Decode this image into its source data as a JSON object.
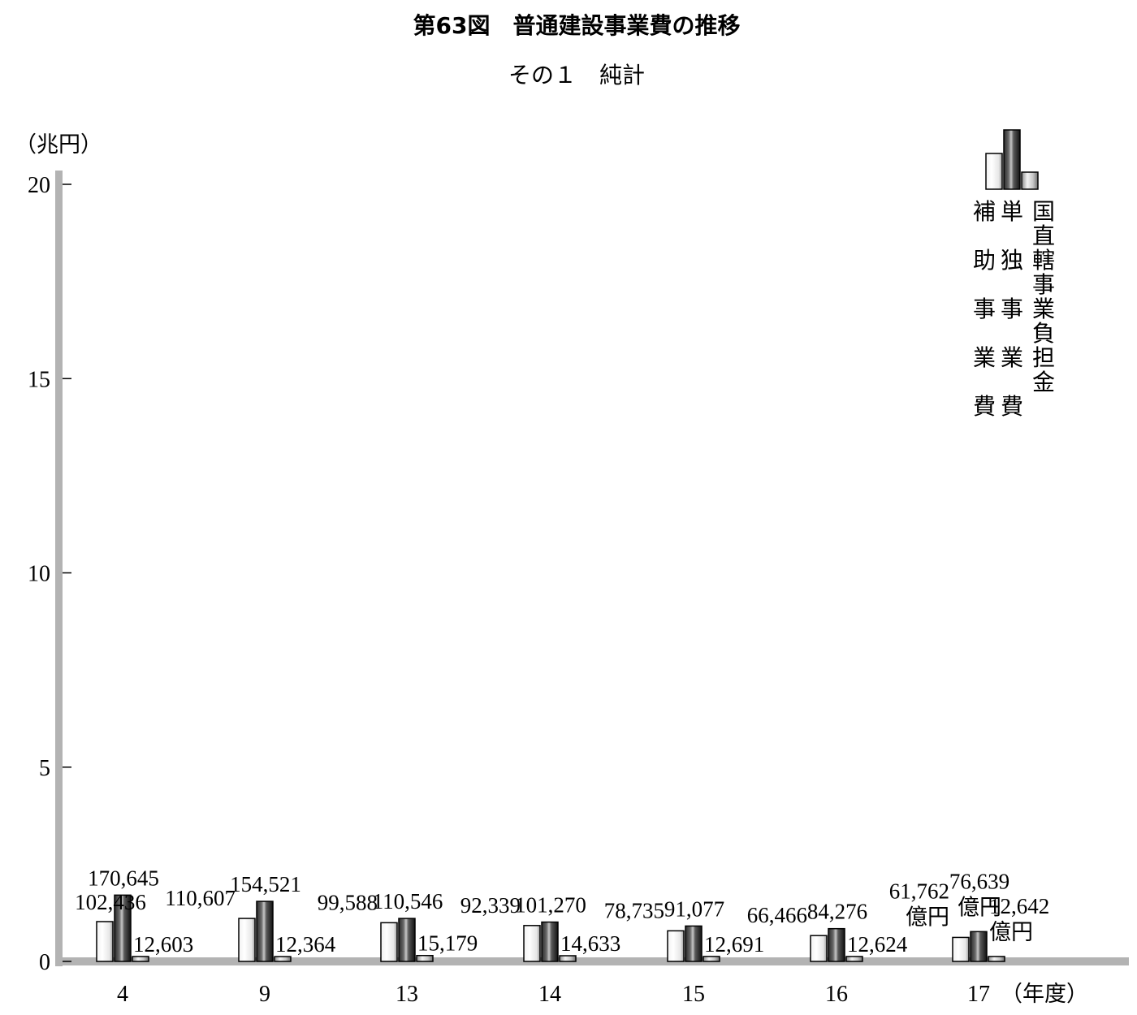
{
  "title": "第63図　普通建設事業費の推移",
  "subtitle": "その１　純計",
  "chart_data": {
    "type": "bar",
    "ylabel": "（兆円）",
    "xlabel": "（年度）",
    "ylim": [
      0,
      20
    ],
    "yticks": [
      "0",
      "5",
      "10",
      "15",
      "20"
    ],
    "categories": [
      "4",
      "9",
      "13",
      "14",
      "15",
      "16",
      "17"
    ],
    "unit_note": "億円",
    "grid": false,
    "legend_position": "top-right",
    "series": [
      {
        "name": "補助事業費",
        "values": [
          102436,
          110607,
          99588,
          92339,
          78735,
          66466,
          61762
        ],
        "labels": [
          "102,436",
          "110,607",
          "99,588",
          "92,339",
          "78,735",
          "66,466",
          "61,762"
        ]
      },
      {
        "name": "単独事業費",
        "values": [
          170645,
          154521,
          110546,
          101270,
          91077,
          84276,
          76639
        ],
        "labels": [
          "170,645",
          "154,521",
          "110,546",
          "101,270",
          "91,077",
          "84,276",
          "76,639"
        ]
      },
      {
        "name": "国直轄事業負担金",
        "values": [
          12603,
          12364,
          15179,
          14633,
          12691,
          12624,
          12642
        ],
        "labels": [
          "12,603",
          "12,364",
          "15,179",
          "14,633",
          "12,691",
          "12,624",
          "12,642"
        ]
      }
    ]
  }
}
